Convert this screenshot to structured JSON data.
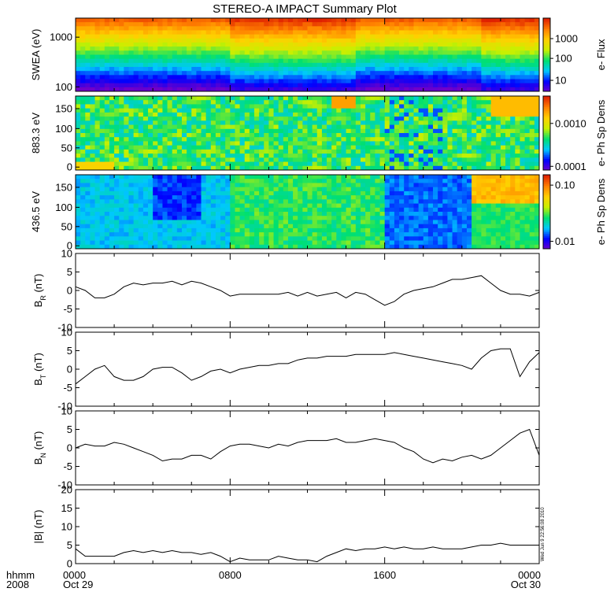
{
  "title": "STEREO-A IMPACT Summary Plot",
  "stamp": "Wed Jun  9 22:56:08 2010",
  "x_axis": {
    "label_line1": "hhmm",
    "label_line2": "2008",
    "ticks": [
      {
        "t": 0,
        "line1": "0000",
        "line2": "Oct 29"
      },
      {
        "t": 8,
        "line1": "0800",
        "line2": ""
      },
      {
        "t": 16,
        "line1": "1600",
        "line2": ""
      },
      {
        "t": 24,
        "line1": "0000",
        "line2": "Oct 30"
      }
    ],
    "range_hours": [
      0,
      24
    ]
  },
  "chart_data": [
    {
      "type": "heatmap",
      "id": "swea",
      "ylabel": "SWEA (eV)",
      "y_ticks": [
        "1000",
        "100"
      ],
      "colorbar": {
        "label": "e- Flux",
        "ticks": [
          "1000",
          "100",
          "10"
        ],
        "scale": "log"
      },
      "colormap": [
        "#7000c8",
        "#0000ff",
        "#00c8ff",
        "#00e070",
        "#c8f000",
        "#ffd000",
        "#ff8000",
        "#e02000"
      ]
    },
    {
      "type": "heatmap",
      "id": "pad883",
      "ylabel": "883.3 eV",
      "y_ticks": [
        "0",
        "50",
        "100",
        "150"
      ],
      "yrange": [
        0,
        180
      ],
      "colorbar": {
        "label": "e- Ph Sp Dens",
        "ticks": [
          "0.0010",
          "0.0001"
        ],
        "scale": "log"
      }
    },
    {
      "type": "heatmap",
      "id": "pad436",
      "ylabel": "436.5 eV",
      "y_ticks": [
        "0",
        "50",
        "100",
        "150"
      ],
      "yrange": [
        0,
        180
      ],
      "colorbar": {
        "label": "e- Ph Sp Dens",
        "ticks": [
          "0.10",
          "0.01"
        ],
        "scale": "log"
      }
    },
    {
      "type": "line",
      "id": "br",
      "ylabel": {
        "main": "B",
        "sub": "R",
        "unit": " (nT)"
      },
      "ylim": [
        -10,
        10
      ],
      "y_ticks": [
        "10",
        "5",
        "0",
        "-5",
        "-10"
      ],
      "x": [
        0,
        0.5,
        1,
        1.5,
        2,
        2.5,
        3,
        3.5,
        4,
        4.5,
        5,
        5.5,
        6,
        6.5,
        7,
        7.5,
        8,
        8.5,
        9,
        9.5,
        10,
        10.5,
        11,
        11.5,
        12,
        12.5,
        13,
        13.5,
        14,
        14.5,
        15,
        15.5,
        16,
        16.5,
        17,
        17.5,
        18,
        18.5,
        19,
        19.5,
        20,
        20.5,
        21,
        21.5,
        22,
        22.5,
        23,
        23.5,
        24
      ],
      "y": [
        1,
        0,
        -2,
        -2,
        -1,
        1,
        2,
        1.5,
        2,
        2,
        2.5,
        1.5,
        2.5,
        2,
        1,
        0,
        -1.5,
        -1,
        -1,
        -1,
        -1,
        -1,
        -0.5,
        -1.5,
        -0.5,
        -1.5,
        -1,
        -0.5,
        -2,
        -0.5,
        -1,
        -2.5,
        -4,
        -3,
        -1,
        0,
        0.5,
        1,
        2,
        3,
        3,
        3.5,
        4,
        2,
        0,
        -1,
        -1,
        -1.5,
        -0.5
      ]
    },
    {
      "type": "line",
      "id": "bt",
      "ylabel": {
        "main": "B",
        "sub": "T",
        "unit": " (nT)"
      },
      "ylim": [
        -10,
        10
      ],
      "y_ticks": [
        "10",
        "5",
        "0",
        "-5",
        "-10"
      ],
      "x": [
        0,
        0.5,
        1,
        1.5,
        2,
        2.5,
        3,
        3.5,
        4,
        4.5,
        5,
        5.5,
        6,
        6.5,
        7,
        7.5,
        8,
        8.5,
        9,
        9.5,
        10,
        10.5,
        11,
        11.5,
        12,
        12.5,
        13,
        13.5,
        14,
        14.5,
        15,
        15.5,
        16,
        16.5,
        17,
        17.5,
        18,
        18.5,
        19,
        19.5,
        20,
        20.5,
        21,
        21.5,
        22,
        22.5,
        23,
        23.5,
        24
      ],
      "y": [
        -4,
        -2,
        0,
        1,
        -2,
        -3,
        -3,
        -2,
        0,
        0.5,
        0.5,
        -1,
        -3,
        -2,
        -0.5,
        0,
        -1,
        0,
        0.5,
        1,
        1,
        1.5,
        1.5,
        2.5,
        3,
        3,
        3.5,
        3.5,
        3.5,
        4,
        4,
        4,
        4,
        4.5,
        4,
        3.5,
        3,
        2.5,
        2,
        1.5,
        1,
        0,
        3,
        5,
        5.5,
        5.5,
        -2,
        2,
        4.5
      ]
    },
    {
      "type": "line",
      "id": "bn",
      "ylabel": {
        "main": "B",
        "sub": "N",
        "unit": " (nT)"
      },
      "ylim": [
        -10,
        10
      ],
      "y_ticks": [
        "10",
        "5",
        "0",
        "-5",
        "-10"
      ],
      "x": [
        0,
        0.5,
        1,
        1.5,
        2,
        2.5,
        3,
        3.5,
        4,
        4.5,
        5,
        5.5,
        6,
        6.5,
        7,
        7.5,
        8,
        8.5,
        9,
        9.5,
        10,
        10.5,
        11,
        11.5,
        12,
        12.5,
        13,
        13.5,
        14,
        14.5,
        15,
        15.5,
        16,
        16.5,
        17,
        17.5,
        18,
        18.5,
        19,
        19.5,
        20,
        20.5,
        21,
        21.5,
        22,
        22.5,
        23,
        23.5,
        24
      ],
      "y": [
        0,
        1,
        0.5,
        0.5,
        1.5,
        1,
        0,
        -1,
        -2,
        -3.5,
        -3,
        -3,
        -2,
        -2,
        -3,
        -1,
        0.5,
        1,
        1,
        0.5,
        0,
        1,
        0.5,
        1.5,
        2,
        2,
        2,
        2.5,
        1.5,
        1.5,
        2,
        2.5,
        2,
        1.5,
        0,
        -1,
        -3,
        -4,
        -3,
        -3.5,
        -2.5,
        -2,
        -3,
        -2,
        0,
        2,
        4,
        5,
        -2
      ]
    },
    {
      "type": "line",
      "id": "bmag",
      "ylabel": {
        "main": "|B|",
        "sub": "",
        "unit": " (nT)"
      },
      "ylim": [
        0,
        20
      ],
      "y_ticks": [
        "20",
        "15",
        "10",
        "5",
        "0"
      ],
      "x": [
        0,
        0.5,
        1,
        1.5,
        2,
        2.5,
        3,
        3.5,
        4,
        4.5,
        5,
        5.5,
        6,
        6.5,
        7,
        7.5,
        8,
        8.5,
        9,
        9.5,
        10,
        10.5,
        11,
        11.5,
        12,
        12.5,
        13,
        13.5,
        14,
        14.5,
        15,
        15.5,
        16,
        16.5,
        17,
        17.5,
        18,
        18.5,
        19,
        19.5,
        20,
        20.5,
        21,
        21.5,
        22,
        22.5,
        23,
        23.5,
        24
      ],
      "y": [
        4,
        2,
        2,
        2,
        2,
        3,
        3.5,
        3,
        3.5,
        3,
        3.5,
        3,
        3,
        2.5,
        3,
        2,
        0.5,
        1.5,
        1,
        1,
        1,
        2,
        1.5,
        1,
        1,
        0.5,
        2,
        3,
        4,
        3.5,
        4,
        4,
        4.5,
        4,
        4.5,
        4,
        4,
        4.5,
        4,
        4,
        4,
        4.5,
        5,
        5,
        5.5,
        5,
        5,
        5,
        5
      ]
    }
  ]
}
